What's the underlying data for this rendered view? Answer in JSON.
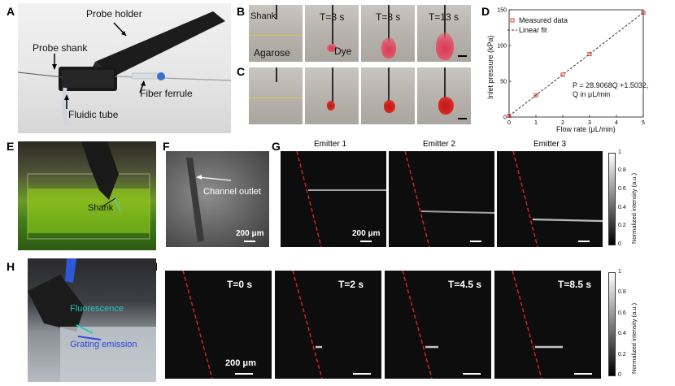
{
  "panels": {
    "A": "A",
    "B": "B",
    "C": "C",
    "D": "D",
    "E": "E",
    "F": "F",
    "G": "G",
    "H": "H",
    "I": "I"
  },
  "panel_a": {
    "probe_holder": "Probe holder",
    "probe_shank": "Probe shank",
    "fiber_ferrule": "Fiber ferrule",
    "fluidic_tube": "Fluidic tube"
  },
  "panel_b": {
    "shank": "Shank",
    "agarose": "Agarose",
    "dye": "Dye",
    "t1": "T=3 s",
    "t2": "T=8 s",
    "t3": "T=13 s"
  },
  "panel_e": {
    "shank": "Shank"
  },
  "panel_f": {
    "channel_outlet": "Channel outlet",
    "scale": "200 μm"
  },
  "panel_g": {
    "emitter1": "Emitter 1",
    "emitter2": "Emitter 2",
    "emitter3": "Emitter 3",
    "scale": "200 μm",
    "colorbar_label": "Normalized intensity (a.u.)",
    "colorbar_ticks": [
      "1",
      "0.8",
      "0.6",
      "0.4",
      "0.2",
      "0"
    ]
  },
  "panel_h": {
    "fluorescence": "Fluorescence",
    "grating": "Grating emission"
  },
  "panel_i": {
    "t0": "T=0 s",
    "t1": "T=2 s",
    "t2": "T=4.5 s",
    "t3": "T=8.5 s",
    "scale": "200 μm",
    "colorbar_label": "Normalized intensity (a.u.)",
    "colorbar_ticks": [
      "1",
      "0.8",
      "0.6",
      "0.4",
      "0.2",
      "0"
    ]
  },
  "chart_data": {
    "type": "scatter",
    "xlabel": "Flow rate (μL/min)",
    "ylabel": "Inlet pressure (kPa)",
    "xlim": [
      0,
      5
    ],
    "ylim": [
      0,
      150
    ],
    "xticks": [
      "0",
      "1",
      "2",
      "3",
      "4",
      "5"
    ],
    "yticks": [
      "0",
      "50",
      "100",
      "150"
    ],
    "legend": {
      "measured": "Measured data",
      "fit": "Linear fit",
      "placement": "top-left"
    },
    "equation_line1": "P = 28.9068Q +1.5032,",
    "equation_line2": "Q in μL/min",
    "measured": {
      "x": [
        0,
        1,
        2,
        3,
        5
      ],
      "y": [
        1.5,
        30.4,
        59.3,
        88.2,
        146.0
      ]
    },
    "fit": {
      "slope": 28.9068,
      "intercept": 1.5032
    },
    "colors": {
      "marker": "#e03a2c",
      "fit": "#333333"
    }
  }
}
